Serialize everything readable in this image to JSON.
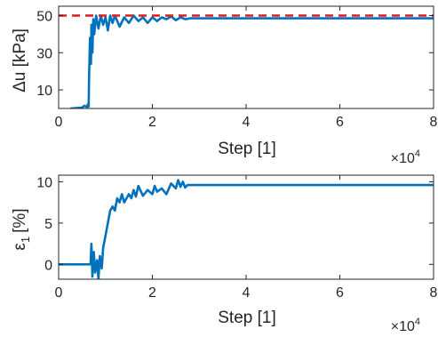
{
  "chart_data": [
    {
      "type": "line",
      "xlabel": "Step [1]",
      "ylabel": "Δu [kPa]",
      "x_multiplier_label": "×10",
      "x_multiplier_exp": "4",
      "xlim": [
        0,
        8
      ],
      "ylim": [
        0,
        55
      ],
      "xticks": [
        0,
        2,
        4,
        6,
        8
      ],
      "yticks": [
        10,
        30,
        50
      ],
      "grid": false,
      "series": [
        {
          "color": "#0072BD",
          "style": "solid",
          "points": [
            [
              0.25,
              0
            ],
            [
              0.5,
              0.5
            ],
            [
              0.55,
              1.5
            ],
            [
              0.6,
              0.8
            ],
            [
              0.63,
              2.5
            ],
            [
              0.64,
              1
            ],
            [
              0.65,
              18
            ],
            [
              0.67,
              38
            ],
            [
              0.69,
              24
            ],
            [
              0.7,
              45
            ],
            [
              0.72,
              30
            ],
            [
              0.74,
              48
            ],
            [
              0.76,
              40
            ],
            [
              0.8,
              50
            ],
            [
              0.85,
              43
            ],
            [
              0.9,
              50
            ],
            [
              0.95,
              45
            ],
            [
              1.0,
              49
            ],
            [
              1.05,
              42
            ],
            [
              1.1,
              50
            ],
            [
              1.15,
              46
            ],
            [
              1.2,
              50
            ],
            [
              1.3,
              44
            ],
            [
              1.4,
              49
            ],
            [
              1.5,
              46
            ],
            [
              1.6,
              50
            ],
            [
              1.7,
              47
            ],
            [
              1.8,
              49
            ],
            [
              1.9,
              46
            ],
            [
              2.0,
              49
            ],
            [
              2.1,
              47
            ],
            [
              2.2,
              49
            ],
            [
              2.3,
              48
            ],
            [
              2.4,
              49.5
            ],
            [
              2.5,
              47.5
            ],
            [
              2.6,
              49
            ],
            [
              2.7,
              48
            ],
            [
              2.8,
              48.5
            ],
            [
              8.0,
              48.5
            ]
          ]
        },
        {
          "color": "#E41A1C",
          "style": "dashed",
          "points": [
            [
              0,
              50
            ],
            [
              8,
              50
            ]
          ]
        }
      ]
    },
    {
      "type": "line",
      "xlabel": "Step [1]",
      "ylabel_base": "ε",
      "ylabel_sub": "1",
      "ylabel_unit": "[%]",
      "x_multiplier_label": "×10",
      "x_multiplier_exp": "4",
      "xlim": [
        0,
        8
      ],
      "ylim": [
        -1.8,
        10.8
      ],
      "xticks": [
        0,
        2,
        4,
        6,
        8
      ],
      "yticks": [
        0,
        5,
        10
      ],
      "grid": false,
      "series": [
        {
          "color": "#0072BD",
          "style": "solid",
          "points": [
            [
              0,
              0
            ],
            [
              0.68,
              0
            ],
            [
              0.7,
              2.5
            ],
            [
              0.72,
              -1.5
            ],
            [
              0.75,
              1.5
            ],
            [
              0.78,
              -1
            ],
            [
              0.82,
              0.5
            ],
            [
              0.85,
              -1.8
            ],
            [
              0.88,
              1
            ],
            [
              0.92,
              -0.5
            ],
            [
              0.95,
              2
            ],
            [
              1.0,
              3.5
            ],
            [
              1.05,
              5
            ],
            [
              1.1,
              6.5
            ],
            [
              1.15,
              7
            ],
            [
              1.2,
              6.5
            ],
            [
              1.25,
              8
            ],
            [
              1.3,
              7.5
            ],
            [
              1.35,
              8.5
            ],
            [
              1.4,
              7.5
            ],
            [
              1.5,
              8.5
            ],
            [
              1.55,
              8
            ],
            [
              1.6,
              9
            ],
            [
              1.65,
              8.2
            ],
            [
              1.7,
              9.5
            ],
            [
              1.8,
              8.3
            ],
            [
              1.9,
              9
            ],
            [
              2.0,
              8.5
            ],
            [
              2.05,
              9.5
            ],
            [
              2.1,
              8.8
            ],
            [
              2.2,
              9.2
            ],
            [
              2.3,
              8.5
            ],
            [
              2.4,
              9.8
            ],
            [
              2.5,
              9.2
            ],
            [
              2.55,
              10.2
            ],
            [
              2.6,
              9.4
            ],
            [
              2.65,
              10
            ],
            [
              2.7,
              9.3
            ],
            [
              2.75,
              9.6
            ],
            [
              8.0,
              9.6
            ]
          ]
        }
      ]
    }
  ]
}
